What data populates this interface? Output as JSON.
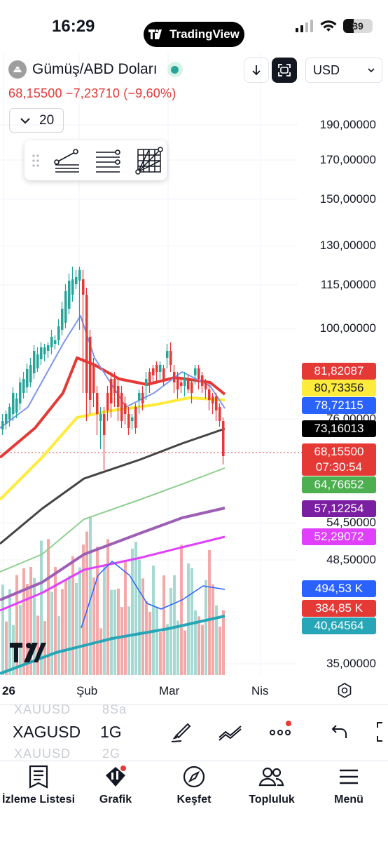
{
  "status_bar": {
    "time": "16:29",
    "app_pill": "TradingView",
    "battery": "39"
  },
  "header": {
    "symbol_name": "Gümüş/ABD Doları",
    "price_line": "68,15500  −7,23710 (−9,60%)",
    "currency": "USD",
    "lookback_value": "20"
  },
  "price_scale": [
    "190,00000",
    "170,00000",
    "150,00000",
    "130,00000",
    "115,00000",
    "100,00000",
    "76,00000",
    "54,50000",
    "48,50000",
    "35,00000"
  ],
  "price_tags": [
    {
      "text": "81,82087",
      "bg": "#e53935",
      "fg": "#ffffff"
    },
    {
      "text": "80,73356",
      "bg": "#ffeb3b",
      "fg": "#131722"
    },
    {
      "text": "78,72115",
      "bg": "#2962ff",
      "fg": "#ffffff"
    },
    {
      "text": "73,16013",
      "bg": "#000000",
      "fg": "#ffffff"
    },
    {
      "text": "68,15500",
      "bg": "#e53935",
      "fg": "#ffffff"
    },
    {
      "text": "07:30:54",
      "bg": "#e53935",
      "fg": "#ffffff"
    },
    {
      "text": "64,76652",
      "bg": "#4caf50",
      "fg": "#ffffff"
    },
    {
      "text": "57,12254",
      "bg": "#7b1fa2",
      "fg": "#ffffff"
    },
    {
      "text": "52,29072",
      "bg": "#e040fb",
      "fg": "#ffffff"
    },
    {
      "text": "494,53 K",
      "bg": "#2962ff",
      "fg": "#ffffff"
    },
    {
      "text": "384,85 K",
      "bg": "#e53935",
      "fg": "#ffffff"
    },
    {
      "text": "40,64564",
      "bg": "#26a6b6",
      "fg": "#ffffff"
    }
  ],
  "x_axis": [
    "26",
    "Şub",
    "Mar",
    "Nis"
  ],
  "toolbar": {
    "ghost_above": [
      "XAUUSD",
      "8Sa"
    ],
    "ticker": "XAGUSD",
    "interval": "1G",
    "ghost_below": [
      "XAUUSD",
      "2G"
    ]
  },
  "bottom_nav": [
    "İzleme Listesi",
    "Grafik",
    "Keşfet",
    "Topluluk",
    "Menü"
  ],
  "colors": {
    "up": "#26a69a",
    "down": "#e53935",
    "accent": "#2962ff"
  }
}
